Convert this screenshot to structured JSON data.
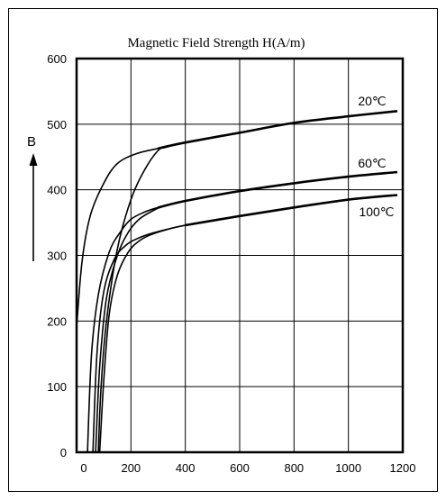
{
  "chart_data": {
    "type": "line",
    "title": "Magnetic Field Strength H(A/m)",
    "ylabel": "B",
    "xlim": [
      0,
      1200
    ],
    "ylim": [
      0,
      600
    ],
    "x_ticks": [
      0,
      200,
      400,
      600,
      800,
      1000,
      1200
    ],
    "y_ticks": [
      0,
      100,
      200,
      300,
      400,
      500,
      600
    ],
    "grid": true,
    "series": [
      {
        "name": "20℃",
        "color": "#000000",
        "loop_upper": [
          [
            0,
            190
          ],
          [
            20,
            290
          ],
          [
            50,
            360
          ],
          [
            100,
            410
          ],
          [
            150,
            440
          ],
          [
            220,
            455
          ],
          [
            300,
            463
          ],
          [
            400,
            472
          ],
          [
            600,
            487
          ],
          [
            800,
            502
          ],
          [
            1000,
            512
          ],
          [
            1180,
            520
          ]
        ],
        "loop_lower": [
          [
            1180,
            520
          ],
          [
            1000,
            512
          ],
          [
            800,
            502
          ],
          [
            600,
            487
          ],
          [
            400,
            472
          ],
          [
            330,
            465
          ],
          [
            300,
            460
          ],
          [
            250,
            430
          ],
          [
            200,
            385
          ],
          [
            150,
            310
          ],
          [
            110,
            200
          ],
          [
            90,
            100
          ],
          [
            80,
            0
          ]
        ]
      },
      {
        "name": "60℃",
        "color": "#000000",
        "loop_upper": [
          [
            40,
            0
          ],
          [
            55,
            150
          ],
          [
            80,
            240
          ],
          [
            120,
            305
          ],
          [
            160,
            335
          ],
          [
            200,
            355
          ],
          [
            250,
            366
          ],
          [
            300,
            373
          ],
          [
            400,
            383
          ],
          [
            600,
            398
          ],
          [
            800,
            410
          ],
          [
            1000,
            420
          ],
          [
            1180,
            427
          ]
        ],
        "loop_lower": [
          [
            1180,
            427
          ],
          [
            1000,
            420
          ],
          [
            800,
            410
          ],
          [
            600,
            398
          ],
          [
            400,
            383
          ],
          [
            320,
            375
          ],
          [
            280,
            368
          ],
          [
            230,
            355
          ],
          [
            190,
            335
          ],
          [
            150,
            300
          ],
          [
            110,
            235
          ],
          [
            85,
            130
          ],
          [
            70,
            0
          ]
        ]
      },
      {
        "name": "100℃",
        "color": "#000000",
        "loop_upper": [
          [
            60,
            0
          ],
          [
            75,
            150
          ],
          [
            100,
            245
          ],
          [
            140,
            295
          ],
          [
            180,
            315
          ],
          [
            220,
            325
          ],
          [
            280,
            334
          ],
          [
            400,
            346
          ],
          [
            600,
            360
          ],
          [
            800,
            373
          ],
          [
            1000,
            385
          ],
          [
            1180,
            392
          ]
        ],
        "loop_lower": [
          [
            1180,
            392
          ],
          [
            1000,
            385
          ],
          [
            800,
            373
          ],
          [
            600,
            360
          ],
          [
            400,
            346
          ],
          [
            320,
            338
          ],
          [
            270,
            331
          ],
          [
            230,
            322
          ],
          [
            190,
            305
          ],
          [
            150,
            270
          ],
          [
            120,
            210
          ],
          [
            100,
            110
          ],
          [
            85,
            0
          ]
        ]
      }
    ]
  }
}
